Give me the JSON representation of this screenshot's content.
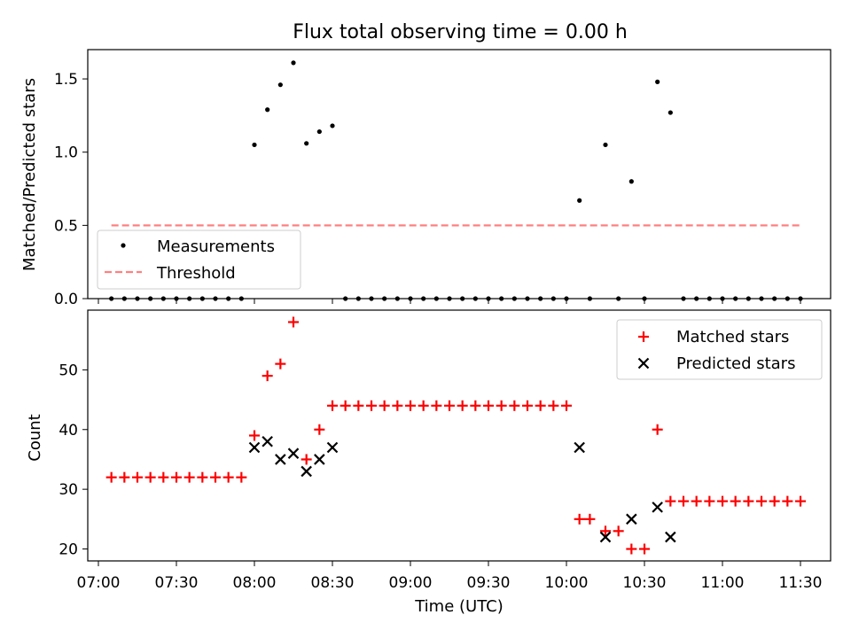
{
  "title": "Flux total observing time = 0.00 h",
  "colors": {
    "matched": "#ff0000",
    "predicted": "#000000",
    "threshold": "#ff8080",
    "measurement": "#000000"
  },
  "x_ticks": [
    "07:00",
    "07:30",
    "08:00",
    "08:30",
    "09:00",
    "09:30",
    "10:00",
    "10:30",
    "11:00",
    "11:30"
  ],
  "x_tick_minutes": [
    420,
    450,
    480,
    510,
    540,
    570,
    600,
    630,
    660,
    690
  ],
  "xlabel": "Time (UTC)",
  "xlim": [
    "07:00",
    "11:30"
  ],
  "chart_data": [
    {
      "type": "scatter",
      "ylabel": "Matched/Predicted stars",
      "ylim": [
        0,
        1.7
      ],
      "y_ticks": [
        "0.0",
        "0.5",
        "1.0",
        "1.5"
      ],
      "y_tick_values": [
        0,
        0.5,
        1.0,
        1.5
      ],
      "legend": {
        "position": "lower-left",
        "entries": [
          "Measurements",
          "Threshold"
        ]
      },
      "series": [
        {
          "name": "Measurements",
          "marker": "dot",
          "x": [
            "07:05",
            "07:10",
            "07:15",
            "07:20",
            "07:25",
            "07:30",
            "07:35",
            "07:40",
            "07:45",
            "07:50",
            "07:55",
            "08:00",
            "08:05",
            "08:10",
            "08:15",
            "08:20",
            "08:25",
            "08:30",
            "08:35",
            "08:40",
            "08:45",
            "08:50",
            "08:55",
            "09:00",
            "09:05",
            "09:10",
            "09:15",
            "09:20",
            "09:25",
            "09:30",
            "09:35",
            "09:40",
            "09:45",
            "09:50",
            "09:55",
            "10:00",
            "10:05",
            "10:09",
            "10:15",
            "10:20",
            "10:25",
            "10:30",
            "10:35",
            "10:40",
            "10:45",
            "10:50",
            "10:55",
            "11:00",
            "11:05",
            "11:10",
            "11:15",
            "11:20",
            "11:25",
            "11:30"
          ],
          "y": [
            0,
            0,
            0,
            0,
            0,
            0,
            0,
            0,
            0,
            0,
            0,
            1.05,
            1.29,
            1.46,
            1.61,
            1.06,
            1.14,
            1.18,
            0,
            0,
            0,
            0,
            0,
            0,
            0,
            0,
            0,
            0,
            0,
            0,
            0,
            0,
            0,
            0,
            0,
            0,
            0.67,
            0,
            1.05,
            0,
            0.8,
            0,
            1.48,
            1.27,
            0,
            0,
            0,
            0,
            0,
            0,
            0,
            0,
            0,
            0
          ]
        },
        {
          "name": "Threshold",
          "style": "dashed",
          "x": [
            "07:05",
            "11:30"
          ],
          "y": [
            0.5,
            0.5
          ]
        }
      ]
    },
    {
      "type": "scatter",
      "ylabel": "Count",
      "ylim": [
        18,
        60
      ],
      "y_ticks": [
        "20",
        "30",
        "40",
        "50"
      ],
      "y_tick_values": [
        20,
        30,
        40,
        50
      ],
      "legend": {
        "position": "top-right",
        "entries": [
          "Matched stars",
          "Predicted stars"
        ]
      },
      "series": [
        {
          "name": "Matched stars",
          "marker": "plus",
          "x": [
            "07:05",
            "07:10",
            "07:15",
            "07:20",
            "07:25",
            "07:30",
            "07:35",
            "07:40",
            "07:45",
            "07:50",
            "07:55",
            "08:00",
            "08:05",
            "08:10",
            "08:15",
            "08:20",
            "08:25",
            "08:30",
            "08:35",
            "08:40",
            "08:45",
            "08:50",
            "08:55",
            "09:00",
            "09:05",
            "09:10",
            "09:15",
            "09:20",
            "09:25",
            "09:30",
            "09:35",
            "09:40",
            "09:45",
            "09:50",
            "09:55",
            "10:00",
            "10:05",
            "10:09",
            "10:15",
            "10:20",
            "10:25",
            "10:30",
            "10:35",
            "10:40",
            "10:45",
            "10:50",
            "10:55",
            "11:00",
            "11:05",
            "11:10",
            "11:15",
            "11:20",
            "11:25",
            "11:30"
          ],
          "y": [
            32,
            32,
            32,
            32,
            32,
            32,
            32,
            32,
            32,
            32,
            32,
            39,
            49,
            51,
            58,
            35,
            40,
            44,
            44,
            44,
            44,
            44,
            44,
            44,
            44,
            44,
            44,
            44,
            44,
            44,
            44,
            44,
            44,
            44,
            44,
            44,
            25,
            25,
            23,
            23,
            20,
            20,
            40,
            28,
            28,
            28,
            28,
            28,
            28,
            28,
            28,
            28,
            28,
            28
          ]
        },
        {
          "name": "Predicted stars",
          "marker": "x",
          "x": [
            "08:00",
            "08:05",
            "08:10",
            "08:15",
            "08:20",
            "08:25",
            "08:30",
            "10:05",
            "10:15",
            "10:25",
            "10:35",
            "10:40"
          ],
          "y": [
            37,
            38,
            35,
            36,
            33,
            35,
            37,
            37,
            22,
            25,
            27,
            22
          ]
        }
      ]
    }
  ]
}
